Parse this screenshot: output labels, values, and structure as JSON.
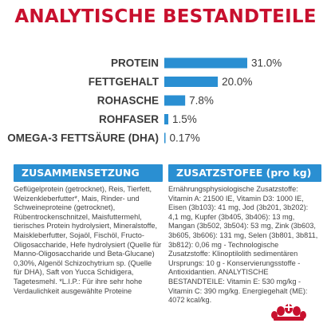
{
  "title": "ANALYTISCHE BESTANDTEILE",
  "colors": {
    "title": "#c8102e",
    "bar": "#2a8fd2",
    "crown": "#c8102e"
  },
  "chart_data": {
    "type": "bar",
    "orientation": "horizontal",
    "categories": [
      "PROTEIN",
      "FETTGEHALT",
      "ROHASCHE",
      "ROHFASER",
      "OMEGA-3 FETTSÄURE (DHA)"
    ],
    "values": [
      31.0,
      20.0,
      7.8,
      1.5,
      0.17
    ],
    "value_labels": [
      "31.0%",
      "20.0%",
      "7.8%",
      "1.5%",
      "0.17%"
    ],
    "grid": false,
    "legend": "none"
  },
  "sections": {
    "composition_title": "ZUSAMMENSETZUNG",
    "composition_text": "Geflügelprotein (getrocknet), Reis, Tierfett, Weizenkleberfutter*, Mais, Rinder- und Schweineproteine (getrocknet), Rübentrockenschnitzel, Maisfuttermehl, tierisches Protein hydrolysiert, Mineralstoffe, Maiskleberfutter, Sojaöl, Fischöl, Fructo-Oligosaccharide, Hefe hydrolysiert (Quelle für Manno-Oligosaccharide und Beta-Glucane) 0,30%, Algenöl Schizochytrium sp. (Quelle für DHA), Saft von Yucca Schidigera, Tagetesmehl. *L.I.P.: Für ihre sehr hohe Verdaulichkeit ausgewählte Proteine",
    "additives_title": "ZUSATZSTOFEE (pro kg)",
    "additives_text": "Ernährungsphysiologische Zusatzstoffe: Vitamin A: 21500 IE, Vitamin D3: 1000 IE, Eisen (3b103): 41 mg, Jod (3b201, 3b202): 4,1 mg, Kupfer (3b405, 3b406): 13 mg, Mangan (3b502, 3b504): 53 mg, Zink (3b603, 3b605, 3b606): 131 mg, Selen (3b801, 3b811, 3b812): 0,06 mg - Technologische Zusatzstoffe: Klinoptilolith sedimentären Ursprungs: 10 g - Konservierungsstoffe - Antioxidantien. ANALYTISCHE BESTANDTEILE: Vitamin E: 530 mg/kg - Vitamin C: 390 mg/kg. Energiegehalt (ME): 4072 kcal/kg."
  }
}
